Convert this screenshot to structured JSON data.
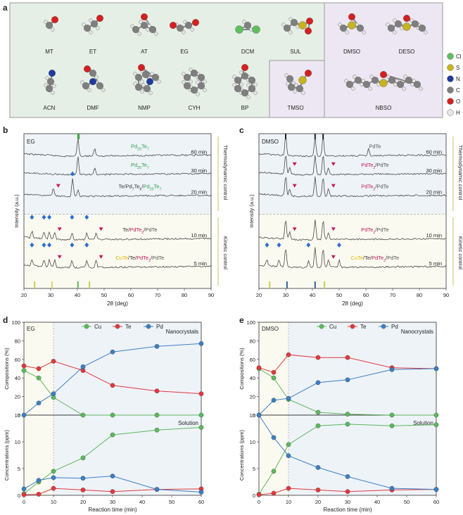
{
  "panel_letters": {
    "a": "a",
    "b": "b",
    "c": "c",
    "d": "d",
    "e": "e"
  },
  "colors": {
    "Cl": "#5fbf5f",
    "S": "#c8b41e",
    "N": "#1f3a9e",
    "C": "#7f7f7f",
    "O": "#d42020",
    "H": "#e6e6e6",
    "cu": "#5cb85c",
    "te": "#e0393e",
    "pd": "#3d7fc1",
    "pdte_magenta": "#c2185b",
    "pd20_green": "#2e9e4e",
    "cute_yellow": "#e0b400",
    "diamond_blue": "#2f6fd0"
  },
  "molecules_row1": [
    "MT",
    "ET",
    "AT",
    "EG",
    "DCM",
    "SUL",
    "DMSO",
    "DESO"
  ],
  "molecules_row2": [
    "ACN",
    "DMF",
    "NMP",
    "CYH",
    "BP",
    "TMSO",
    "NBSO"
  ],
  "legend_a": [
    {
      "el": "Cl",
      "label": "Cl"
    },
    {
      "el": "S",
      "label": "S"
    },
    {
      "el": "N",
      "label": "N"
    },
    {
      "el": "C",
      "label": "C"
    },
    {
      "el": "O",
      "label": "O"
    },
    {
      "el": "H",
      "label": "H"
    }
  ],
  "chart_data": [
    {
      "id": "b",
      "type": "line",
      "title": "",
      "solvent": "EG",
      "xlabel": "2θ (deg)",
      "ylabel": "Intensity (a.u.)",
      "xlim": [
        20,
        90
      ],
      "xticks": [
        20,
        30,
        40,
        50,
        60,
        70,
        80,
        90
      ],
      "series_labels": [
        {
          "time": "60 min",
          "phase": "Pd20Te7"
        },
        {
          "time": "30 min",
          "phase": "Pd20Te7"
        },
        {
          "time": "20 min",
          "phase": "Te/Pd7Te6/Pd20Te7"
        },
        {
          "time": "10 min",
          "phase": "Te/PdTe2/PdTe"
        },
        {
          "time": "5 min",
          "phase": "CuTe/Te/PdTe2/PdTe"
        }
      ],
      "peaks": [
        {
          "time": "60 min",
          "positions": [
            40.2,
            46.5
          ]
        },
        {
          "time": "30 min",
          "positions": [
            40.2,
            46.5
          ]
        },
        {
          "time": "20 min",
          "positions": [
            38.2,
            40.2,
            31.0
          ]
        },
        {
          "time": "10 min",
          "positions": [
            23,
            27.5,
            29.5,
            38,
            43.5,
            31.5,
            47
          ]
        },
        {
          "time": "5 min",
          "positions": [
            23,
            27.5,
            29.5,
            38,
            43.5,
            31.5,
            47
          ]
        }
      ],
      "arrows": {
        "upper": "Thermodynamic control",
        "lower": "Kinetic control"
      }
    },
    {
      "id": "c",
      "type": "line",
      "title": "",
      "solvent": "DMSO",
      "xlabel": "2θ (deg)",
      "ylabel": "Intensity (a.u.)",
      "xlim": [
        20,
        90
      ],
      "xticks": [
        20,
        30,
        40,
        50,
        60,
        70,
        80,
        90
      ],
      "series_labels": [
        {
          "time": "60 min",
          "phase": "PdTe"
        },
        {
          "time": "30 min",
          "phase": "PdTe2/PdTe"
        },
        {
          "time": "20 min",
          "phase": "PdTe2/PdTe"
        },
        {
          "time": "10 min",
          "phase": "PdTe2/PdTe"
        },
        {
          "time": "5 min",
          "phase": "CuTe/Te/PdTe2/PdTe"
        }
      ],
      "peaks": [
        {
          "time": "60 min",
          "positions": [
            30.0,
            41.0,
            44.0,
            61.0
          ]
        },
        {
          "time": "30 min",
          "positions": [
            30.0,
            31.5,
            41.0,
            44.0,
            46.0
          ]
        },
        {
          "time": "20 min",
          "positions": [
            30.0,
            31.5,
            41.0,
            44.0,
            46.0
          ]
        },
        {
          "time": "10 min",
          "positions": [
            30.0,
            31.5,
            41.0,
            44.0,
            46.0
          ]
        },
        {
          "time": "5 min",
          "positions": [
            23,
            27.5,
            30,
            38.5,
            41,
            44,
            46,
            50
          ]
        }
      ],
      "arrows": {
        "upper": "Thermodynamic control",
        "lower": "Kinetic control"
      }
    },
    {
      "id": "d",
      "type": "line",
      "solvent": "EG",
      "legend": [
        "Cu",
        "Te",
        "Pd"
      ],
      "top": {
        "title": "Nanocrystals",
        "ylabel": "Compositions (%)",
        "ylim": [
          0,
          100
        ],
        "yticks": [
          0,
          20,
          40,
          60,
          80,
          100
        ],
        "x": [
          0,
          5,
          10,
          20,
          30,
          45,
          60
        ],
        "series": [
          {
            "name": "Cu",
            "values": [
              48,
              40,
              19,
              0,
              0,
              0,
              0
            ]
          },
          {
            "name": "Te",
            "values": [
              53,
              50,
              58,
              48,
              32,
              26,
              23
            ]
          },
          {
            "name": "Pd",
            "values": [
              0,
              13,
              23,
              52,
              68,
              74,
              77
            ]
          }
        ]
      },
      "bottom": {
        "title": "Solution",
        "ylabel": "Concentrations (ppm)",
        "ylim": [
          0,
          15
        ],
        "yticks": [
          0,
          5,
          10,
          15
        ],
        "x": [
          0,
          5,
          10,
          20,
          30,
          45,
          60
        ],
        "series": [
          {
            "name": "Cu",
            "values": [
              0.3,
              2.5,
              4.5,
              7.0,
              11.3,
              12.2,
              12.7
            ]
          },
          {
            "name": "Te",
            "values": [
              0.1,
              0.2,
              1.3,
              1.0,
              0.7,
              1.1,
              1.2
            ]
          },
          {
            "name": "Pd",
            "values": [
              1.2,
              2.8,
              3.3,
              3.2,
              3.6,
              1.1,
              0.6
            ]
          }
        ]
      },
      "xlabel": "Reaction time (min)",
      "xticks": [
        0,
        10,
        20,
        30,
        40,
        50,
        60
      ],
      "divider_x": 10
    },
    {
      "id": "e",
      "type": "line",
      "solvent": "DMSO",
      "legend": [
        "Cu",
        "Te",
        "Pd"
      ],
      "top": {
        "title": "Nanocrystals",
        "ylabel": "Compositions (%)",
        "ylim": [
          0,
          100
        ],
        "yticks": [
          0,
          20,
          40,
          60,
          80,
          100
        ],
        "x": [
          0,
          5,
          10,
          20,
          30,
          45,
          60
        ],
        "series": [
          {
            "name": "Cu",
            "values": [
              50,
              40,
              17,
              3,
              1,
              0,
              0
            ]
          },
          {
            "name": "Te",
            "values": [
              51,
              46,
              65,
              62,
              62,
              51,
              50
            ]
          },
          {
            "name": "Pd",
            "values": [
              0,
              16,
              18,
              35,
              38,
              49,
              50
            ]
          }
        ]
      },
      "bottom": {
        "title": "Solution",
        "ylabel": "Concentrations (ppm)",
        "ylim": [
          0,
          15
        ],
        "yticks": [
          0,
          5,
          10,
          15
        ],
        "x": [
          0,
          5,
          10,
          20,
          30,
          45,
          60
        ],
        "series": [
          {
            "name": "Cu",
            "values": [
              0.2,
              4.5,
              9.5,
              13.0,
              13.3,
              13.0,
              13.2
            ]
          },
          {
            "name": "Te",
            "values": [
              0.1,
              0.4,
              1.3,
              1.0,
              0.7,
              1.0,
              1.1
            ]
          },
          {
            "name": "Pd",
            "values": [
              15.0,
              10.8,
              7.4,
              5.2,
              3.5,
              1.3,
              1.1
            ]
          }
        ]
      },
      "xlabel": "Reaction time (min)",
      "xticks": [
        0,
        10,
        20,
        30,
        40,
        50,
        60
      ],
      "divider_x": 10
    }
  ]
}
